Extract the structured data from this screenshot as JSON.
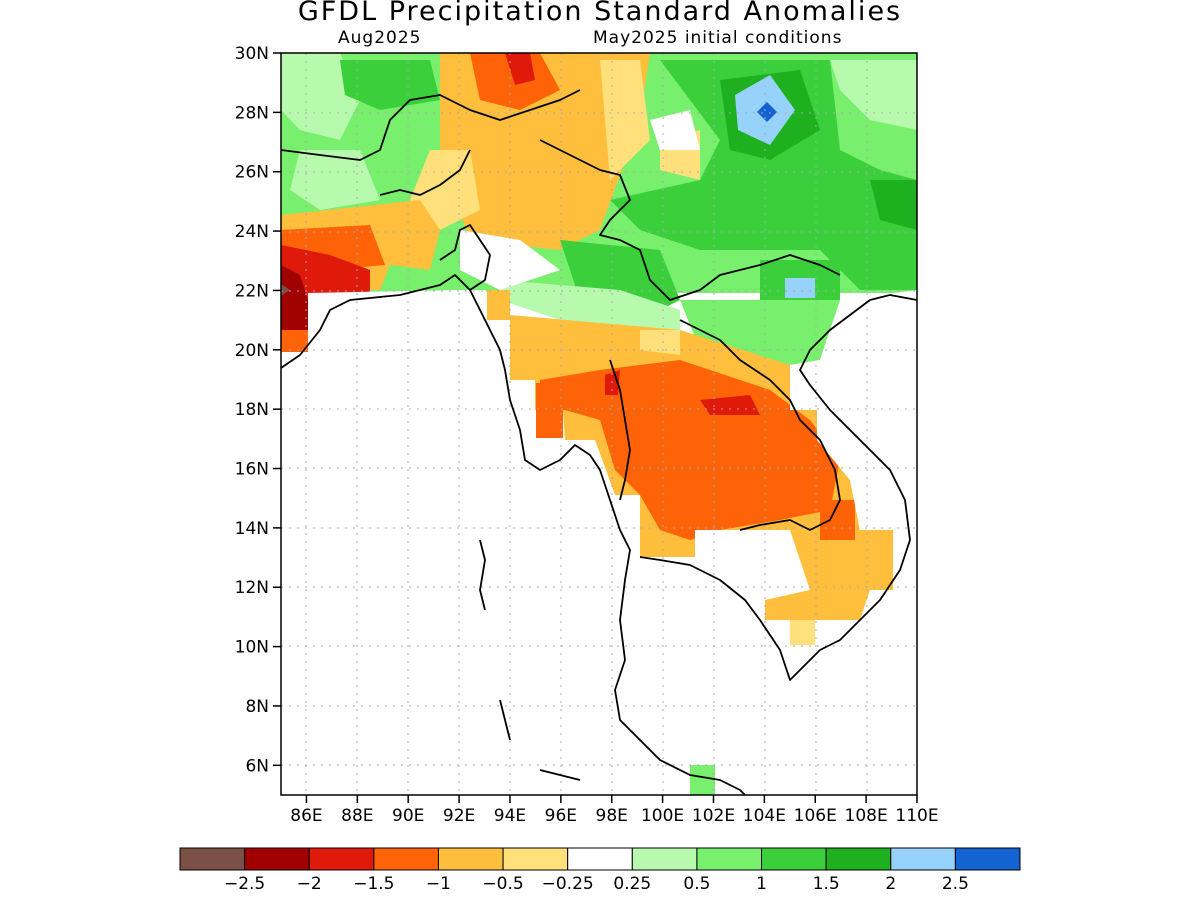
{
  "title": "GFDL Precipitation Standard Anomalies",
  "target_month": "Aug2025",
  "initial_conditions": "May2025 initial conditions",
  "map": {
    "lon_range": [
      85,
      110
    ],
    "lat_range": [
      5,
      30
    ],
    "grid_lines": true,
    "lat_ticks": [
      "6N",
      "8N",
      "10N",
      "12N",
      "14N",
      "16N",
      "18N",
      "20N",
      "22N",
      "24N",
      "26N",
      "28N",
      "30N"
    ],
    "lon_ticks": [
      "86E",
      "88E",
      "90E",
      "92E",
      "94E",
      "96E",
      "98E",
      "100E",
      "102E",
      "104E",
      "106E",
      "108E",
      "110E"
    ],
    "region": "Bangladesh, Myanmar, Thailand, Laos, Cambodia, Vietnam, southern China",
    "anomaly_regions": [
      {
        "area": "northern Yunnan / southern China",
        "category": "1 to 2.5",
        "peak": "2 to 2.5 near 28N 104E"
      },
      {
        "area": "northern Laos / Vietnam border",
        "category": "1 to 2",
        "peak": "2 to 2.5 near 22N 105E"
      },
      {
        "area": "northeast Thailand / Laos",
        "category": "-1 to -1.5",
        "peak": "-1.5 to -2 near 17.5N 103E"
      },
      {
        "area": "Bangladesh / northeast India coast",
        "category": "-1 to -2",
        "peak": "-2.5 near 22N 85E"
      },
      {
        "area": "northern Myanmar",
        "category": "-0.25 to -1",
        "peak": "-1 to -1.5 near 29.5N 94E"
      },
      {
        "area": "southern Laos / Cambodia",
        "category": "-0.25 to -1"
      }
    ]
  },
  "legend": {
    "colors": [
      "#7b5147",
      "#a00000",
      "#e01a0b",
      "#ff6308",
      "#ffbe3b",
      "#ffe07a",
      "#ffffff",
      "#b7f9ad",
      "#78f06e",
      "#3bcf3b",
      "#1fb01f",
      "#96d2fa",
      "#1463d2"
    ],
    "labels": [
      "−2.5",
      "−2",
      "−1.5",
      "−1",
      "−0.5",
      "−0.25",
      "0.25",
      "0.5",
      "1",
      "1.5",
      "2",
      "2.5"
    ]
  }
}
